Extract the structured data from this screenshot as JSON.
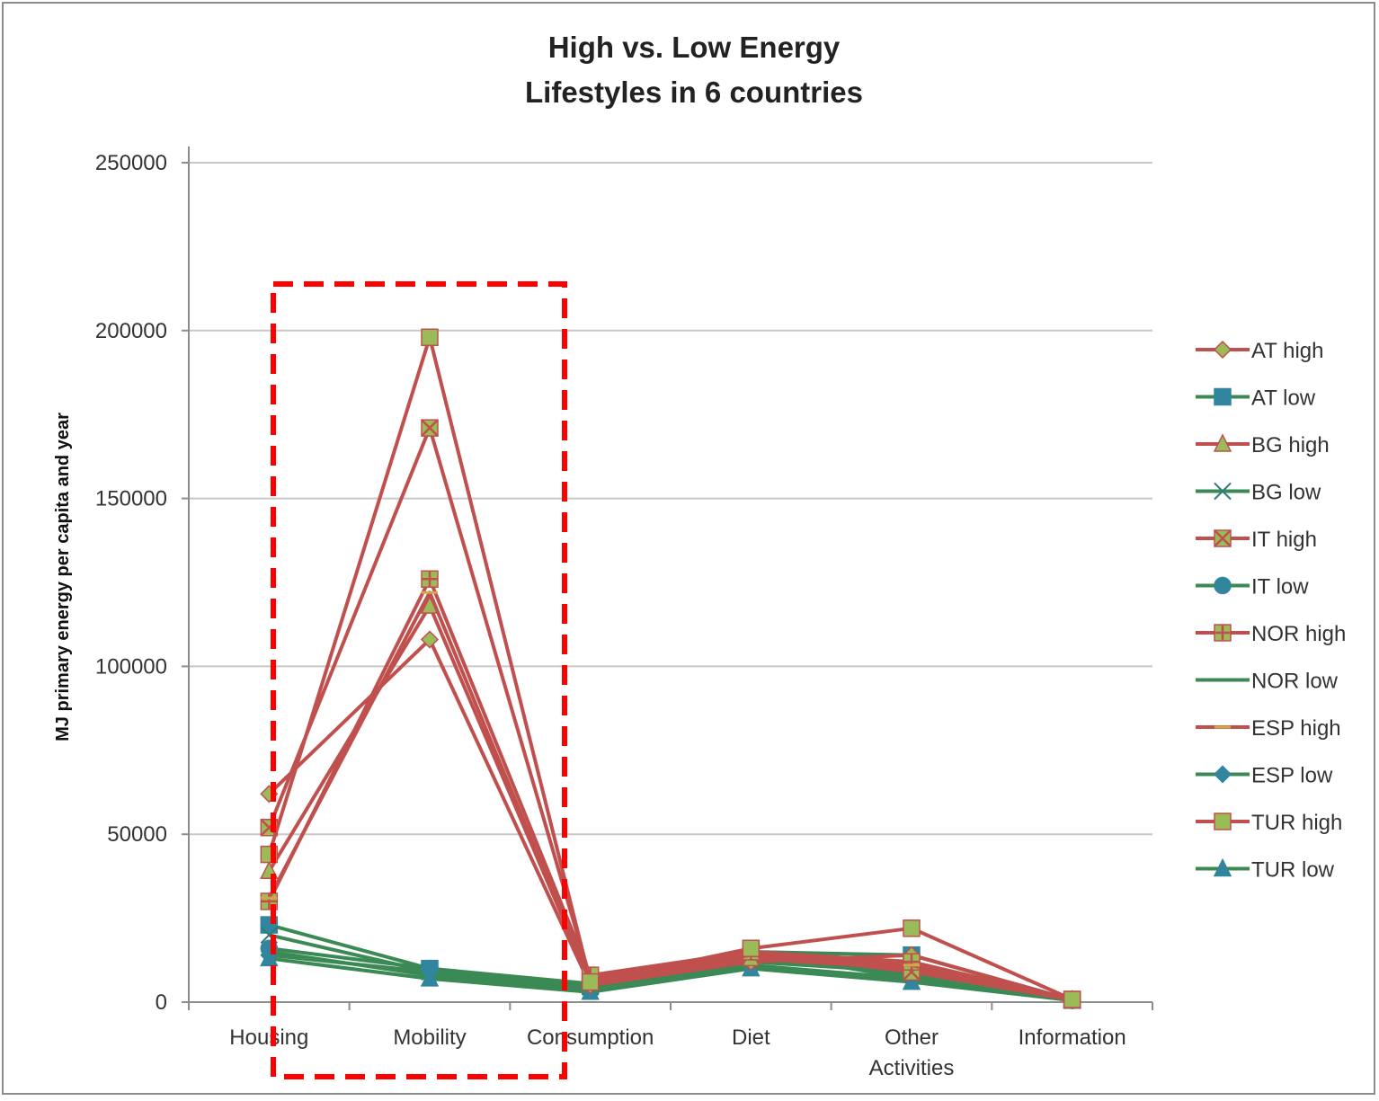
{
  "chart_data": {
    "type": "line",
    "title_lines": [
      "High vs. Low Energy",
      "Lifestyles in 6 countries"
    ],
    "xlabel": "",
    "ylabel": "MJ primary energy per capita and year",
    "ylim": [
      0,
      250000
    ],
    "yticks": [
      "0",
      "50000",
      "100000",
      "150000",
      "200000",
      "250000"
    ],
    "ytick_values": [
      0,
      50000,
      100000,
      150000,
      200000,
      250000
    ],
    "categories": [
      [
        "Housing"
      ],
      [
        "Mobility"
      ],
      [
        "Consumption"
      ],
      [
        "Diet"
      ],
      [
        "Other",
        "Activities"
      ],
      [
        "Information"
      ]
    ],
    "grid": "horizontal",
    "legend_position": "right",
    "colors": {
      "high": "#c0504d",
      "low": "#31859c",
      "low_line": "#3b8a56",
      "marker_fill": "#9bbb59",
      "highlight": "#ff0000"
    },
    "highlight_box": "dashed red rectangle around Housing and Mobility",
    "series": [
      {
        "name": "AT high",
        "group": "high",
        "marker": "diamond",
        "values": [
          62000,
          108000,
          5000,
          12000,
          14000,
          700
        ]
      },
      {
        "name": "AT low",
        "group": "low",
        "marker": "square",
        "values": [
          23000,
          10000,
          5000,
          15000,
          14000,
          600
        ]
      },
      {
        "name": "BG high",
        "group": "high",
        "marker": "triangle",
        "values": [
          39000,
          118000,
          6000,
          13000,
          10000,
          600
        ]
      },
      {
        "name": "BG low",
        "group": "low",
        "marker": "x",
        "values": [
          20000,
          9000,
          4500,
          12000,
          9000,
          500
        ]
      },
      {
        "name": "IT high",
        "group": "high",
        "marker": "xsquare",
        "values": [
          52000,
          171000,
          7000,
          15000,
          9000,
          700
        ]
      },
      {
        "name": "IT low",
        "group": "low",
        "marker": "circle",
        "values": [
          16000,
          10000,
          5500,
          14000,
          8000,
          500
        ]
      },
      {
        "name": "NOR high",
        "group": "high",
        "marker": "plussquare",
        "values": [
          30000,
          126000,
          8000,
          15000,
          12000,
          800
        ]
      },
      {
        "name": "NOR low",
        "group": "low",
        "marker": "none",
        "values": [
          15000,
          8000,
          4000,
          11000,
          7000,
          500
        ]
      },
      {
        "name": "ESP high",
        "group": "high",
        "marker": "dash",
        "values": [
          31000,
          122000,
          6000,
          14000,
          11000,
          600
        ]
      },
      {
        "name": "ESP low",
        "group": "low",
        "marker": "diamond",
        "values": [
          14000,
          9000,
          4000,
          15000,
          7000,
          500
        ]
      },
      {
        "name": "TUR high",
        "group": "high",
        "marker": "square",
        "values": [
          44000,
          198000,
          6000,
          16000,
          22000,
          800
        ]
      },
      {
        "name": "TUR low",
        "group": "low",
        "marker": "triangle",
        "values": [
          13000,
          7000,
          3000,
          10000,
          6000,
          500
        ]
      }
    ]
  }
}
